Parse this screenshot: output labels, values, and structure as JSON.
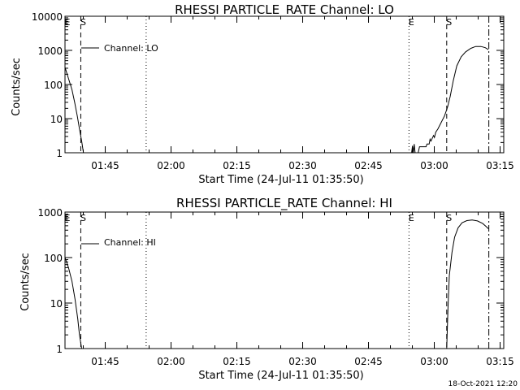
{
  "chart_data": [
    {
      "type": "line",
      "title": "RHESSI PARTICLE_RATE Channel: LO",
      "xlabel": "Start Time (24-Jul-11 01:35:50)",
      "ylabel": "Counts/sec",
      "yscale": "log",
      "ylim": [
        1,
        10000
      ],
      "xlim_minutes": [
        0,
        100
      ],
      "y_ticks": [
        {
          "value": 1,
          "label": "1"
        },
        {
          "value": 10,
          "label": "10"
        },
        {
          "value": 100,
          "label": "100"
        },
        {
          "value": 1000,
          "label": "1000"
        },
        {
          "value": 10000,
          "label": "10000"
        }
      ],
      "x_ticks": [
        {
          "minutes": 9.17,
          "label": "01:45"
        },
        {
          "minutes": 24.17,
          "label": "02:00"
        },
        {
          "minutes": 39.17,
          "label": "02:15"
        },
        {
          "minutes": 54.17,
          "label": "02:30"
        },
        {
          "minutes": 69.17,
          "label": "02:45"
        },
        {
          "minutes": 84.17,
          "label": "03:00"
        },
        {
          "minutes": 99.17,
          "label": "03:15"
        }
      ],
      "legend": {
        "label": "Channel: LO",
        "placement": "top-left"
      },
      "markers": [
        {
          "label": "E",
          "minutes": 0,
          "style": "dotted",
          "show_label": true
        },
        {
          "label": "S",
          "minutes": 3.6,
          "style": "dashed",
          "show_label": true
        },
        {
          "label": "",
          "minutes": 18.5,
          "style": "dotted",
          "show_label": false
        },
        {
          "label": "E",
          "minutes": 78.4,
          "style": "dotted",
          "show_label": true
        },
        {
          "label": "S",
          "minutes": 87.0,
          "style": "dashed",
          "show_label": true
        },
        {
          "label": "",
          "minutes": 96.6,
          "style": "dashdot",
          "show_label": false
        }
      ],
      "series": [
        {
          "name": "Channel: LO",
          "segments": [
            [
              [
                0,
                320
              ],
              [
                0.8,
                150
              ],
              [
                1.6,
                70
              ],
              [
                2.2,
                30
              ],
              [
                2.8,
                12
              ],
              [
                3.3,
                5
              ],
              [
                3.8,
                2.2
              ],
              [
                4.2,
                1
              ]
            ],
            [
              [
                79.0,
                1
              ],
              [
                79.2,
                1.6
              ],
              [
                79.4,
                1
              ],
              [
                79.6,
                1.8
              ],
              [
                79.8,
                1
              ],
              [
                80.5,
                1
              ],
              [
                80.8,
                1.5
              ],
              [
                82.3,
                1.5
              ],
              [
                82.5,
                1.8
              ],
              [
                83.0,
                1.8
              ],
              [
                83.2,
                2.5
              ],
              [
                83.4,
                2.2
              ],
              [
                84.0,
                3.2
              ],
              [
                84.2,
                2.8
              ],
              [
                84.5,
                4
              ],
              [
                85.0,
                5
              ],
              [
                85.8,
                8
              ],
              [
                86.5,
                12
              ],
              [
                87.2,
                22
              ],
              [
                87.8,
                45
              ],
              [
                88.5,
                130
              ],
              [
                89.3,
                350
              ],
              [
                90.3,
                650
              ],
              [
                91.3,
                900
              ],
              [
                92.5,
                1150
              ],
              [
                93.6,
                1300
              ],
              [
                94.8,
                1300
              ],
              [
                95.8,
                1200
              ],
              [
                96.5,
                1050
              ]
            ]
          ]
        }
      ]
    },
    {
      "type": "line",
      "title": "RHESSI PARTICLE_RATE Channel: HI",
      "xlabel": "Start Time (24-Jul-11 01:35:50)",
      "ylabel": "Counts/sec",
      "yscale": "log",
      "ylim": [
        1,
        1000
      ],
      "xlim_minutes": [
        0,
        100
      ],
      "y_ticks": [
        {
          "value": 1,
          "label": "1"
        },
        {
          "value": 10,
          "label": "10"
        },
        {
          "value": 100,
          "label": "100"
        },
        {
          "value": 1000,
          "label": "1000"
        }
      ],
      "x_ticks": [
        {
          "minutes": 9.17,
          "label": "01:45"
        },
        {
          "minutes": 24.17,
          "label": "02:00"
        },
        {
          "minutes": 39.17,
          "label": "02:15"
        },
        {
          "minutes": 54.17,
          "label": "02:30"
        },
        {
          "minutes": 69.17,
          "label": "02:45"
        },
        {
          "minutes": 84.17,
          "label": "03:00"
        },
        {
          "minutes": 99.17,
          "label": "03:15"
        }
      ],
      "legend": {
        "label": "Channel: HI",
        "placement": "top-left"
      },
      "markers": [
        {
          "label": "E",
          "minutes": 0,
          "style": "dotted",
          "show_label": true
        },
        {
          "label": "S",
          "minutes": 3.6,
          "style": "dashed",
          "show_label": true
        },
        {
          "label": "",
          "minutes": 18.5,
          "style": "dotted",
          "show_label": false
        },
        {
          "label": "E",
          "minutes": 78.4,
          "style": "dotted",
          "show_label": true
        },
        {
          "label": "S",
          "minutes": 87.0,
          "style": "dashed",
          "show_label": true
        },
        {
          "label": "",
          "minutes": 96.6,
          "style": "dashdot",
          "show_label": false
        }
      ],
      "series": [
        {
          "name": "Channel: HI",
          "segments": [
            [
              [
                0,
                100
              ],
              [
                0.8,
                60
              ],
              [
                1.6,
                30
              ],
              [
                2.3,
                12
              ],
              [
                2.9,
                4.5
              ],
              [
                3.3,
                2
              ],
              [
                3.8,
                1
              ]
            ],
            [
              [
                87.0,
                1
              ],
              [
                87.3,
                8
              ],
              [
                87.6,
                40
              ],
              [
                88.2,
                130
              ],
              [
                88.8,
                280
              ],
              [
                89.6,
                450
              ],
              [
                90.5,
                580
              ],
              [
                91.6,
                650
              ],
              [
                92.8,
                670
              ],
              [
                94.0,
                640
              ],
              [
                95.2,
                560
              ],
              [
                96.0,
                480
              ],
              [
                96.5,
                430
              ]
            ]
          ]
        }
      ]
    }
  ],
  "footer": {
    "date_stamp": "18-Oct-2021 12:20"
  }
}
